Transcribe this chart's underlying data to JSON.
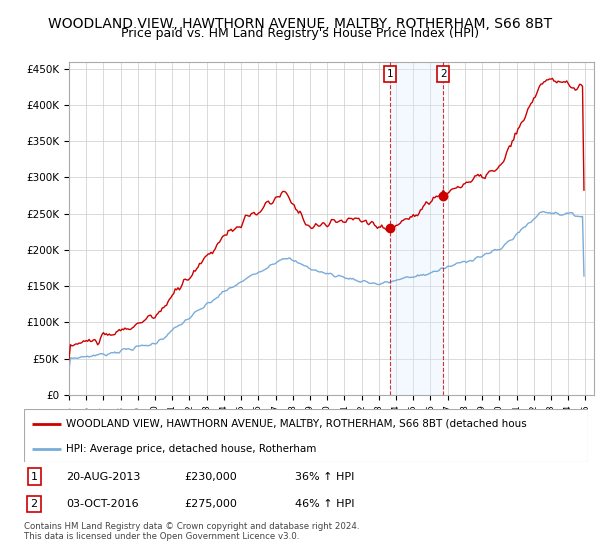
{
  "title": "WOODLAND VIEW, HAWTHORN AVENUE, MALTBY, ROTHERHAM, S66 8BT",
  "subtitle": "Price paid vs. HM Land Registry's House Price Index (HPI)",
  "title_fontsize": 10,
  "subtitle_fontsize": 9,
  "ylabel_ticks": [
    "£0",
    "£50K",
    "£100K",
    "£150K",
    "£200K",
    "£250K",
    "£300K",
    "£350K",
    "£400K",
    "£450K"
  ],
  "ytick_values": [
    0,
    50000,
    100000,
    150000,
    200000,
    250000,
    300000,
    350000,
    400000,
    450000
  ],
  "ylim": [
    0,
    460000
  ],
  "xlim_start": 1995.0,
  "xlim_end": 2025.5,
  "red_color": "#cc0000",
  "blue_color": "#7aacda",
  "shade_color": "#ddeeff",
  "sale1_x": 2013.64,
  "sale1_y": 230000,
  "sale2_x": 2016.75,
  "sale2_y": 275000,
  "legend_line1": "WOODLAND VIEW, HAWTHORN AVENUE, MALTBY, ROTHERHAM, S66 8BT (detached hous",
  "legend_line2": "HPI: Average price, detached house, Rotherham",
  "table_row1": [
    "1",
    "20-AUG-2013",
    "£230,000",
    "36% ↑ HPI"
  ],
  "table_row2": [
    "2",
    "03-OCT-2016",
    "£275,000",
    "46% ↑ HPI"
  ],
  "footnote": "Contains HM Land Registry data © Crown copyright and database right 2024.\nThis data is licensed under the Open Government Licence v3.0.",
  "background_color": "#ffffff",
  "grid_color": "#cccccc",
  "red_noise_seed": 10,
  "blue_noise_seed": 7
}
